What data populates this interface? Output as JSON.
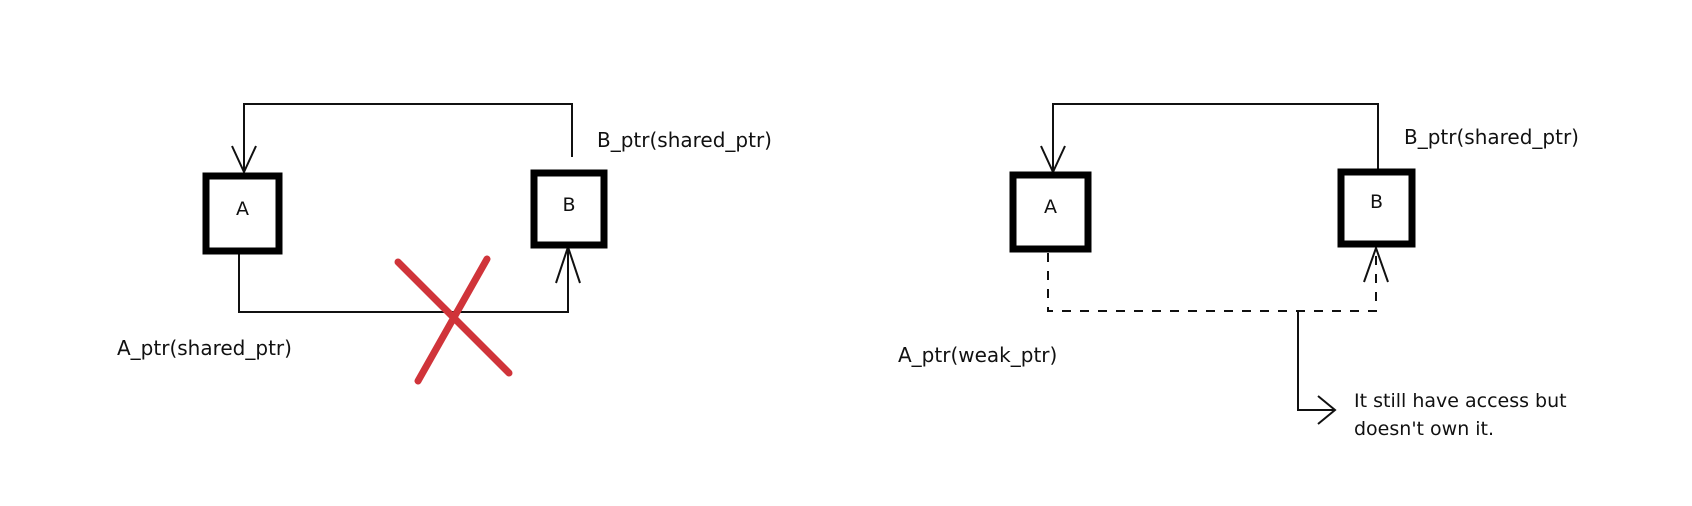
{
  "diagram_left": {
    "node_a": {
      "label": "A"
    },
    "node_b": {
      "label": "B"
    },
    "b_pointer_label": "B_ptr(shared_ptr)",
    "a_pointer_label": "A_ptr(shared_ptr)",
    "cross_color": "#d0343a"
  },
  "diagram_right": {
    "node_a": {
      "label": "A"
    },
    "node_b": {
      "label": "B"
    },
    "b_pointer_label": "B_ptr(shared_ptr)",
    "a_pointer_label": "A_ptr(weak_ptr)",
    "note_line1": "It still have access but",
    "note_line2": "doesn't own it."
  },
  "colors": {
    "line": "#111111",
    "box_border": "#000000"
  }
}
